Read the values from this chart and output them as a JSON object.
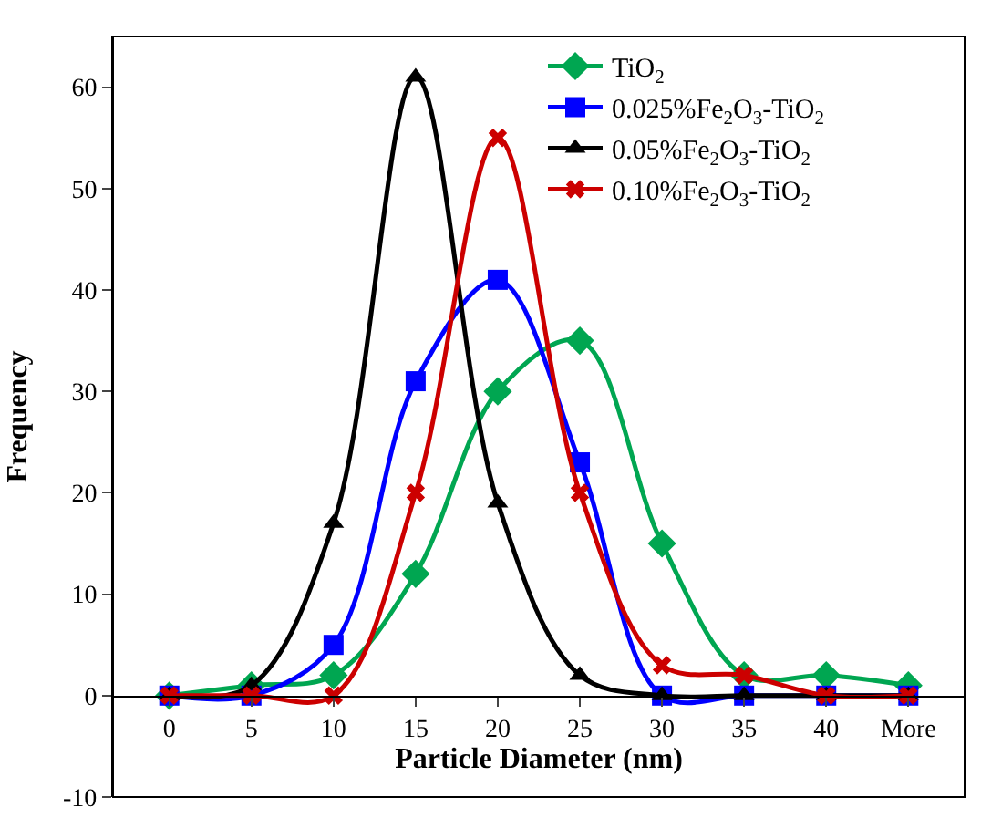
{
  "chart_data": {
    "type": "line",
    "xlabel": "Particle Diameter (nm)",
    "ylabel": "Frequency",
    "categories": [
      "0",
      "5",
      "10",
      "15",
      "20",
      "25",
      "30",
      "35",
      "40",
      "More"
    ],
    "ylim": [
      -10,
      65
    ],
    "yticks": [
      -10,
      0,
      10,
      20,
      30,
      40,
      50,
      60
    ],
    "legend": "top right",
    "series": [
      {
        "name": "TiO$_{2}$",
        "color": "#00a651",
        "marker": "diamond",
        "values": [
          0,
          1,
          2,
          12,
          30,
          35,
          15,
          2,
          2,
          1
        ]
      },
      {
        "name": "0.025%Fe$_{2}$O$_{3}$-TiO$_{2}$",
        "color": "#0000ff",
        "marker": "square",
        "values": [
          0,
          0,
          5,
          31,
          41,
          23,
          0,
          0,
          0,
          0
        ]
      },
      {
        "name": "0.05%Fe$_{2}$O$_{3}$-TiO$_{2}$",
        "color": "#000000",
        "marker": "triangle",
        "values": [
          0,
          1,
          17,
          61,
          19,
          2,
          0,
          0,
          0,
          0
        ]
      },
      {
        "name": "0.10%Fe$_{2}$O$_{3}$-TiO$_{2}$",
        "color": "#cc0000",
        "marker": "cross",
        "values": [
          0,
          0,
          0,
          20,
          55,
          20,
          3,
          2,
          0,
          0
        ]
      }
    ]
  }
}
